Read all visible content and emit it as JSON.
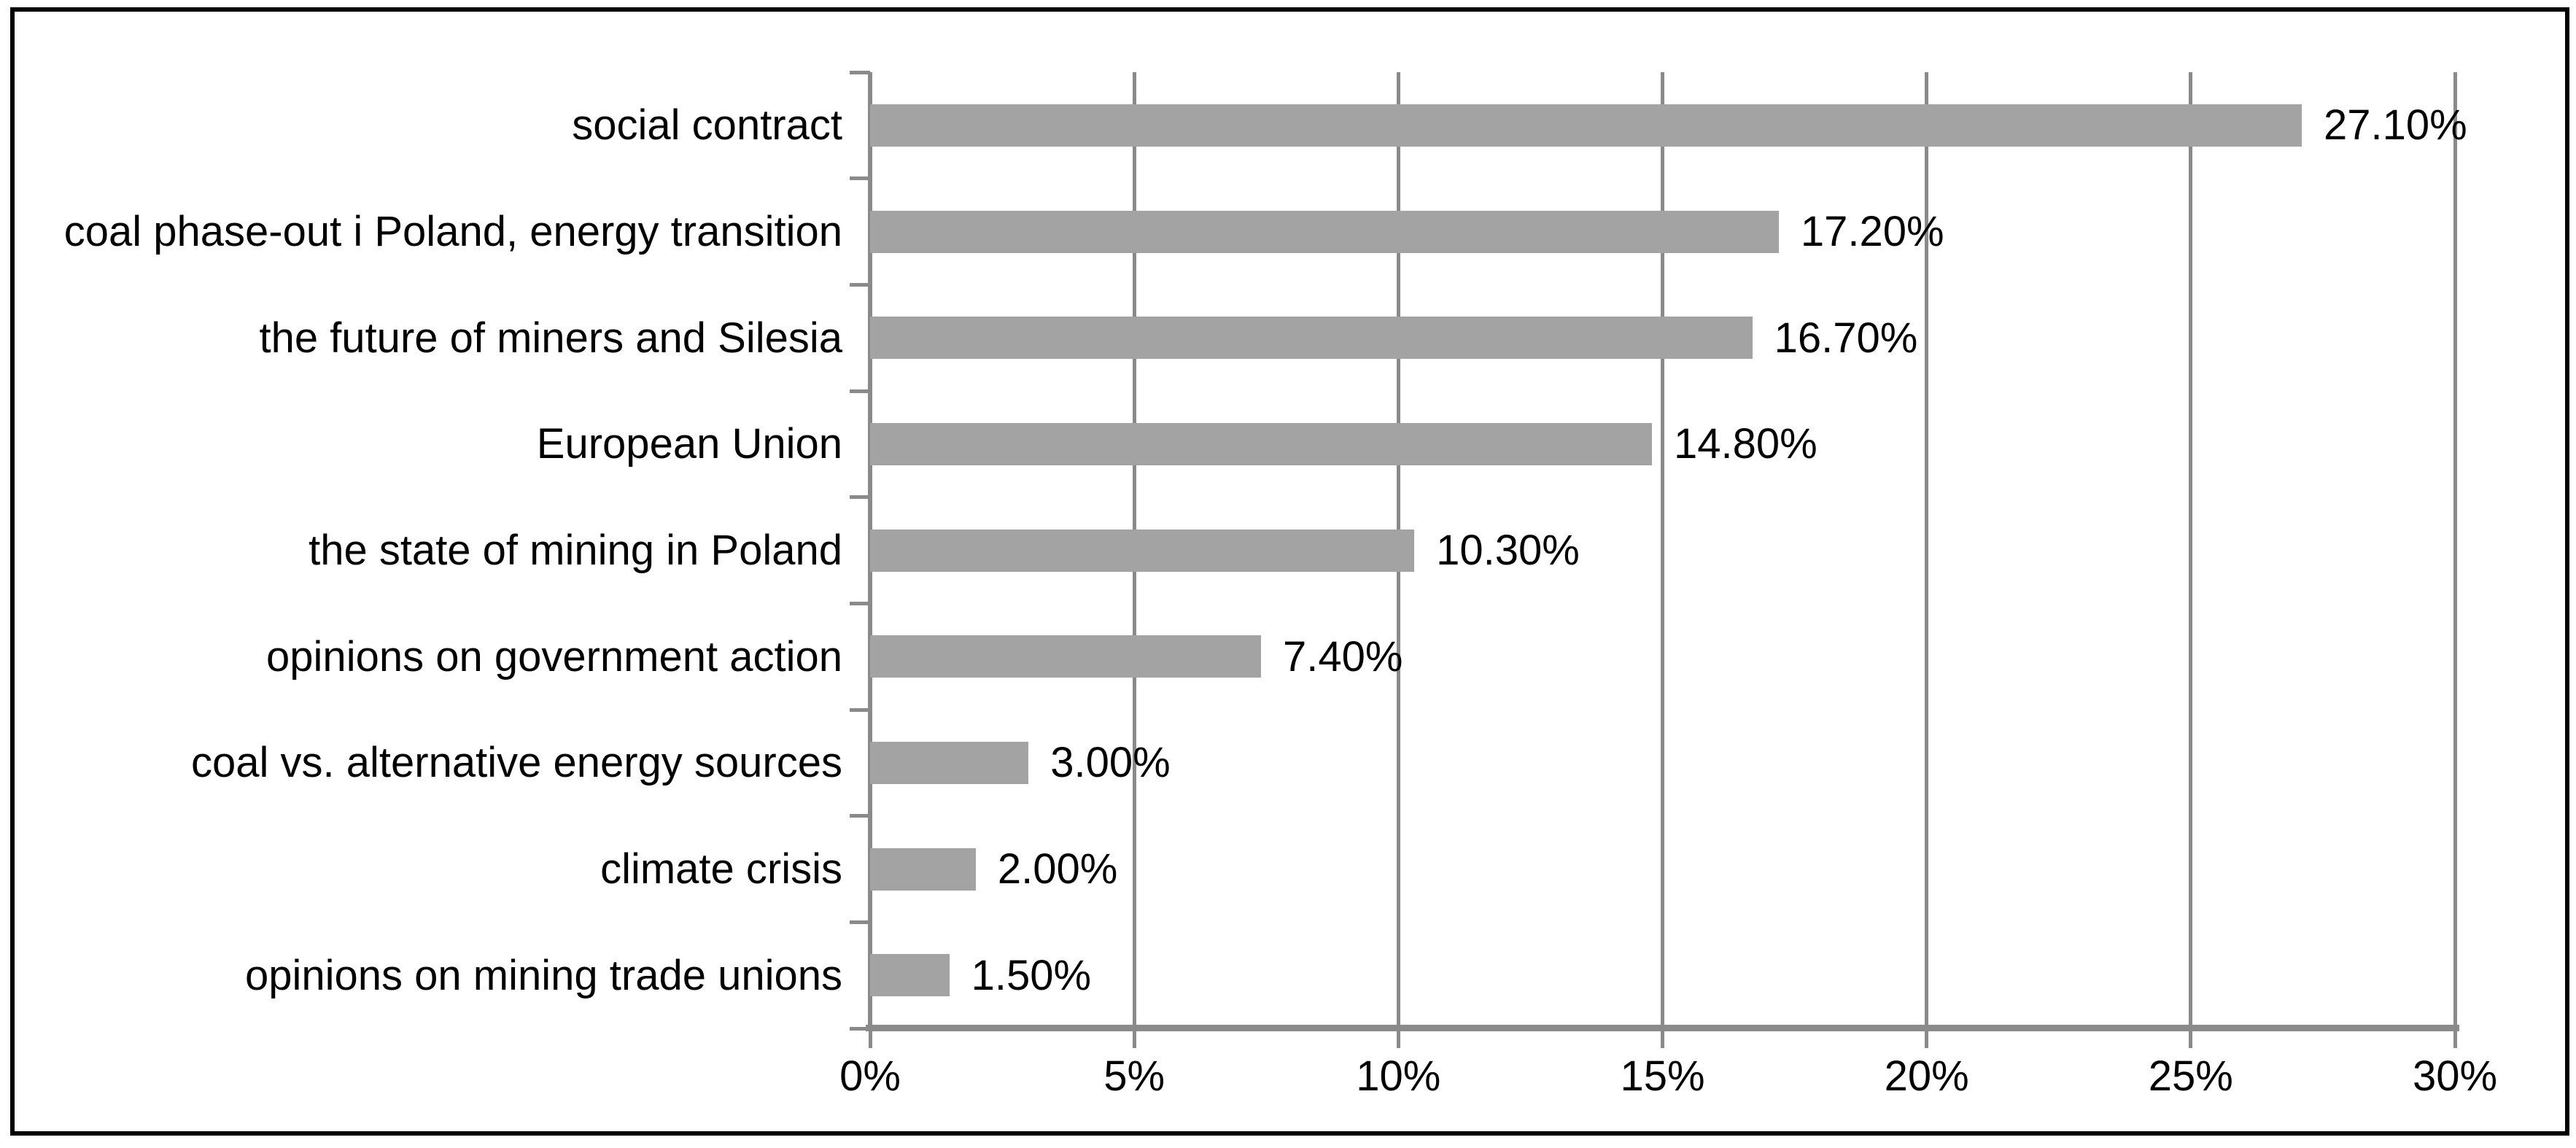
{
  "chart_data": {
    "type": "bar",
    "orientation": "horizontal",
    "categories": [
      "social contract",
      "coal phase-out i Poland, energy transition",
      "the future of miners and Silesia",
      "European Union",
      "the state of mining in Poland",
      "opinions on government action",
      "coal vs. alternative energy sources",
      "climate crisis",
      "opinions on mining trade unions"
    ],
    "values": [
      27.1,
      17.2,
      16.7,
      14.8,
      10.3,
      7.4,
      3.0,
      2.0,
      1.5
    ],
    "value_labels": [
      "27.10%",
      "17.20%",
      "16.70%",
      "14.80%",
      "10.30%",
      "7.40%",
      "3.00%",
      "2.00%",
      "1.50%"
    ],
    "x_ticks": [
      "0%",
      "5%",
      "10%",
      "15%",
      "20%",
      "25%",
      "30%"
    ],
    "x_tick_values": [
      0,
      5,
      10,
      15,
      20,
      25,
      30
    ],
    "xlim": [
      0,
      30
    ],
    "grid": "vertical-gridlines-on",
    "legend": "none",
    "colors": {
      "bar": "#a3a3a3",
      "gridline": "#8a8a8a",
      "axis": "#8a8a8a",
      "text": "#000000",
      "frame_border": "#000000",
      "background": "#ffffff"
    }
  }
}
